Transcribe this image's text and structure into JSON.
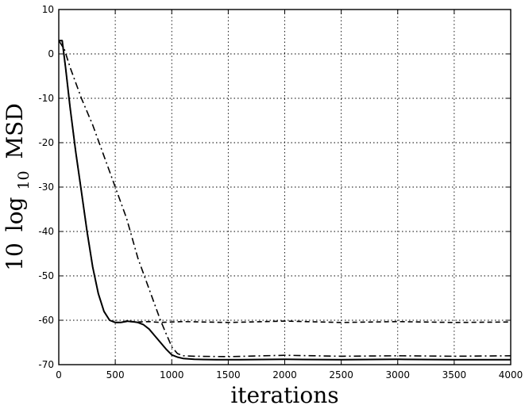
{
  "chart_data": {
    "type": "line",
    "title": "",
    "xlabel": "iterations",
    "ylabel": {
      "prefix": "10",
      "log": "log",
      "sub": "10",
      "suffix": "MSD"
    },
    "xlim": [
      0,
      4000
    ],
    "ylim": [
      -70,
      10
    ],
    "x_ticks": [
      0,
      500,
      1000,
      1500,
      2000,
      2500,
      3000,
      3500,
      4000
    ],
    "y_ticks": [
      -70,
      -60,
      -50,
      -40,
      -30,
      -20,
      -10,
      0,
      10
    ],
    "x_tick_labels": [
      "0",
      "500",
      "1000",
      "1500",
      "2000",
      "2500",
      "3000",
      "3500",
      "4000"
    ],
    "y_tick_labels": [
      "-70",
      "-60",
      "-50",
      "-40",
      "-30",
      "-20",
      "-10",
      "0",
      "10"
    ],
    "grid": true,
    "line_color": "#000000",
    "series": [
      {
        "style": "solid",
        "x": [
          0,
          30,
          60,
          100,
          150,
          200,
          250,
          300,
          350,
          400,
          450,
          500,
          550,
          600,
          650,
          700,
          750,
          800,
          850,
          900,
          950,
          1000,
          1050,
          1100,
          1200,
          1400,
          1600,
          2000,
          2500,
          3000,
          3500,
          4000
        ],
        "y": [
          3,
          3,
          -3,
          -12,
          -22,
          -31,
          -40,
          -48,
          -54,
          -58,
          -60,
          -60.5,
          -60.5,
          -60.2,
          -60.3,
          -60.5,
          -61,
          -62,
          -63.5,
          -65,
          -66.5,
          -67.8,
          -68.3,
          -68.6,
          -68.8,
          -68.9,
          -68.9,
          -68.8,
          -68.9,
          -68.8,
          -68.9,
          -68.9
        ]
      },
      {
        "style": "dashed",
        "x": [
          0,
          30,
          60,
          100,
          150,
          200,
          250,
          300,
          350,
          400,
          450,
          500,
          550,
          600,
          700,
          800,
          900,
          1000,
          1100,
          1500,
          2000,
          2500,
          3000,
          3500,
          4000
        ],
        "y": [
          3,
          3,
          -3,
          -12,
          -22,
          -31,
          -40,
          -48,
          -54,
          -58,
          -60,
          -60.5,
          -60.5,
          -60.3,
          -60.4,
          -60.3,
          -60.5,
          -60.4,
          -60.3,
          -60.5,
          -60.2,
          -60.5,
          -60.3,
          -60.5,
          -60.4
        ]
      },
      {
        "style": "dashdot",
        "x": [
          0,
          50,
          100,
          200,
          300,
          400,
          500,
          600,
          700,
          800,
          900,
          950,
          1000,
          1050,
          1100,
          1200,
          1500,
          2000,
          2500,
          3000,
          3500,
          4000
        ],
        "y": [
          3,
          1,
          -3,
          -10,
          -16,
          -23,
          -30,
          -37,
          -46,
          -53,
          -60,
          -63,
          -66,
          -67.5,
          -68,
          -68.1,
          -68.2,
          -67.9,
          -68.1,
          -68.0,
          -68.1,
          -68.0
        ]
      }
    ]
  }
}
